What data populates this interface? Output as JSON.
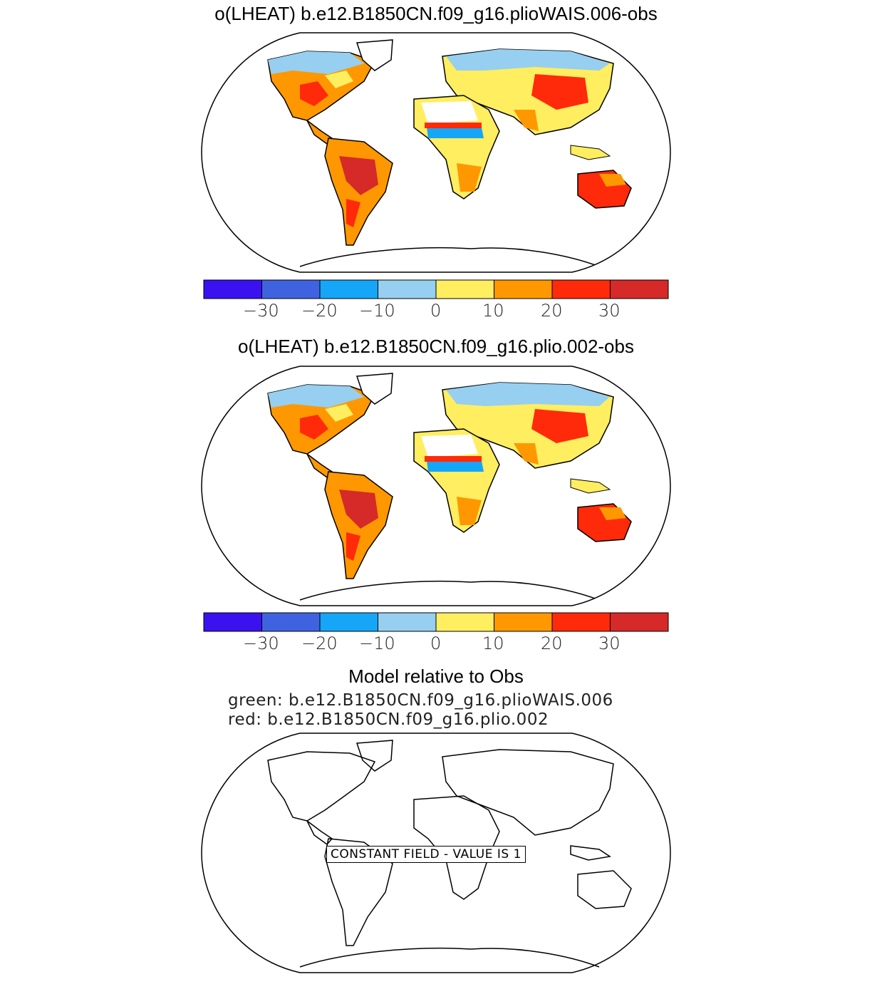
{
  "panels": [
    {
      "title": "o(LHEAT) b.e12.B1850CN.f09_g16.plioWAIS.006-obs"
    },
    {
      "title": "o(LHEAT) b.e12.B1850CN.f09_g16.plio.002-obs"
    }
  ],
  "colorbar": {
    "colors": [
      "#3a12f0",
      "#3f63e0",
      "#16a6f8",
      "#96cff0",
      "#ffee60",
      "#ff9800",
      "#ff2a0a",
      "#d52a28"
    ],
    "tick_labels": [
      "−30",
      "−20",
      "−10",
      "0",
      "10",
      "20",
      "30"
    ]
  },
  "summary": {
    "title": "Model relative to Obs",
    "green_line": "green: b.e12.B1850CN.f09_g16.plioWAIS.006",
    "red_line": "red: b.e12.B1850CN.f09_g16.plio.002",
    "constant_label": "CONSTANT FIELD - VALUE IS 1"
  }
}
